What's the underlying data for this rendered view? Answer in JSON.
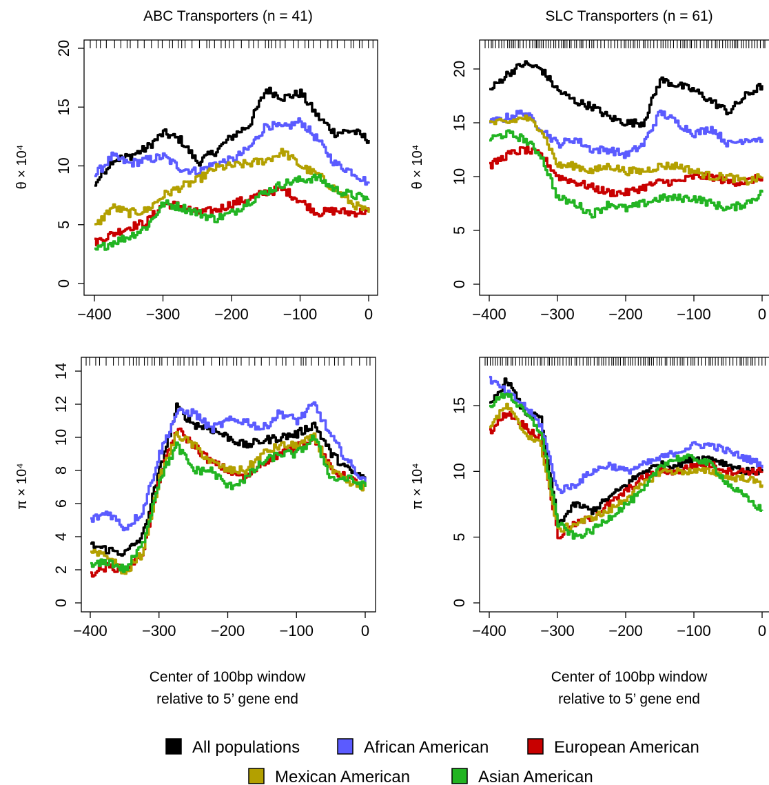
{
  "legend": {
    "entries": [
      {
        "label": "All populations",
        "color": "#000000"
      },
      {
        "label": "African American",
        "color": "#5b5bff"
      },
      {
        "label": "European American",
        "color": "#c80000"
      },
      {
        "label": "Mexican American",
        "color": "#b3a000"
      },
      {
        "label": "Asian American",
        "color": "#22b422"
      }
    ]
  },
  "chart_data": [
    {
      "type": "line",
      "panel": "ABC theta",
      "title": "ABC Transporters (n = 41)",
      "ylabel": "θ × 10⁴",
      "xlabel": "",
      "xlim": [
        -400,
        0
      ],
      "ylim": [
        0,
        20
      ],
      "xticks": [
        "-400",
        "-300",
        "-200",
        "-100",
        "0"
      ],
      "yticks": [
        "0",
        "5",
        "10",
        "15",
        "20"
      ],
      "x": [
        -400,
        -375,
        -350,
        -325,
        -300,
        -275,
        -250,
        -225,
        -200,
        -175,
        -150,
        -125,
        -100,
        -75,
        -50,
        -25,
        0
      ],
      "series": [
        {
          "name": "All populations",
          "color": "#000000",
          "values": [
            8.5,
            10.5,
            10.8,
            11.5,
            12.8,
            12.2,
            10.3,
            11.2,
            12.5,
            13.5,
            16.5,
            15.8,
            16.2,
            14.2,
            12.8,
            13.0,
            12.2
          ]
        },
        {
          "name": "African American",
          "color": "#5b5bff",
          "values": [
            9.2,
            10.8,
            10.2,
            10.5,
            10.8,
            9.8,
            9.5,
            10.2,
            10.5,
            11.5,
            13.5,
            13.2,
            13.8,
            12.2,
            10.2,
            9.5,
            8.5
          ]
        },
        {
          "name": "European American",
          "color": "#c80000",
          "values": [
            3.5,
            4.2,
            4.8,
            5.2,
            6.8,
            6.6,
            6.0,
            6.2,
            6.8,
            7.2,
            7.8,
            8.0,
            7.0,
            6.0,
            6.2,
            6.0,
            6.2
          ]
        },
        {
          "name": "Mexican American",
          "color": "#b3a000",
          "values": [
            4.8,
            6.5,
            6.0,
            6.2,
            7.5,
            8.2,
            8.8,
            9.8,
            10.0,
            10.2,
            10.5,
            11.2,
            10.0,
            9.2,
            8.0,
            6.8,
            6.0
          ]
        },
        {
          "name": "Asian American",
          "color": "#22b422",
          "values": [
            2.8,
            3.5,
            4.0,
            4.8,
            6.8,
            6.5,
            6.0,
            5.5,
            6.0,
            7.0,
            7.8,
            8.5,
            8.8,
            9.0,
            8.0,
            7.5,
            7.2
          ]
        }
      ]
    },
    {
      "type": "line",
      "panel": "SLC theta",
      "title": "SLC Transporters (n = 61)",
      "ylabel": "θ × 10⁴",
      "xlabel": "",
      "xlim": [
        -400,
        0
      ],
      "ylim": [
        0,
        22
      ],
      "xticks": [
        "-400",
        "-300",
        "-200",
        "-100",
        "0"
      ],
      "yticks": [
        "0",
        "5",
        "10",
        "15",
        "20"
      ],
      "x": [
        -400,
        -375,
        -350,
        -325,
        -300,
        -275,
        -250,
        -225,
        -200,
        -175,
        -150,
        -125,
        -100,
        -75,
        -50,
        -25,
        0
      ],
      "series": [
        {
          "name": "All populations",
          "color": "#000000",
          "values": [
            18.0,
            19.5,
            20.5,
            20.0,
            18.0,
            17.0,
            16.5,
            15.5,
            15.0,
            15.0,
            19.0,
            18.5,
            18.0,
            17.0,
            16.0,
            17.5,
            18.5
          ]
        },
        {
          "name": "African American",
          "color": "#5b5bff",
          "values": [
            15.0,
            15.5,
            16.0,
            14.5,
            13.0,
            13.5,
            12.5,
            12.5,
            12.0,
            13.0,
            16.0,
            15.0,
            14.0,
            14.5,
            13.0,
            13.5,
            13.5
          ]
        },
        {
          "name": "European American",
          "color": "#c80000",
          "values": [
            11.0,
            12.0,
            12.5,
            12.0,
            10.0,
            9.5,
            9.0,
            8.5,
            8.5,
            9.0,
            9.5,
            9.5,
            10.0,
            10.0,
            9.5,
            9.5,
            10.0
          ]
        },
        {
          "name": "Mexican American",
          "color": "#b3a000",
          "values": [
            15.0,
            15.0,
            15.5,
            14.5,
            11.0,
            11.0,
            10.5,
            11.0,
            10.5,
            10.5,
            11.0,
            11.0,
            10.5,
            10.0,
            10.0,
            9.5,
            10.0
          ]
        },
        {
          "name": "Asian American",
          "color": "#22b422",
          "values": [
            13.5,
            14.0,
            13.5,
            12.0,
            8.0,
            7.5,
            6.5,
            7.5,
            7.0,
            7.5,
            8.0,
            8.0,
            8.0,
            7.5,
            7.0,
            7.5,
            8.5
          ]
        }
      ]
    },
    {
      "type": "line",
      "panel": "ABC pi",
      "title": "",
      "ylabel": "π × 10⁴",
      "xlabel": "Center of 100bp window\nrelative to 5’ gene end",
      "xlim": [
        -400,
        0
      ],
      "ylim": [
        0,
        14
      ],
      "xticks": [
        "-400",
        "-300",
        "-200",
        "-100",
        "0"
      ],
      "yticks": [
        "0",
        "2",
        "4",
        "6",
        "8",
        "10",
        "12",
        "14"
      ],
      "x": [
        -400,
        -375,
        -350,
        -325,
        -300,
        -275,
        -250,
        -225,
        -200,
        -175,
        -150,
        -125,
        -100,
        -75,
        -50,
        -25,
        0
      ],
      "series": [
        {
          "name": "All populations",
          "color": "#000000",
          "values": [
            3.5,
            3.2,
            3.0,
            4.0,
            8.0,
            11.8,
            10.8,
            10.5,
            10.0,
            9.5,
            9.8,
            10.0,
            10.2,
            10.8,
            9.0,
            8.0,
            7.5
          ]
        },
        {
          "name": "African American",
          "color": "#5b5bff",
          "values": [
            5.0,
            5.5,
            4.5,
            5.5,
            9.0,
            11.5,
            11.5,
            10.5,
            11.0,
            11.0,
            10.5,
            11.5,
            11.0,
            12.0,
            10.0,
            8.5,
            7.2
          ]
        },
        {
          "name": "European American",
          "color": "#c80000",
          "values": [
            1.8,
            2.2,
            2.0,
            3.0,
            7.5,
            10.5,
            9.5,
            8.5,
            8.0,
            7.5,
            8.5,
            9.0,
            9.5,
            10.0,
            8.0,
            7.5,
            7.0
          ]
        },
        {
          "name": "Mexican American",
          "color": "#b3a000",
          "values": [
            3.0,
            2.8,
            1.8,
            3.0,
            7.5,
            10.2,
            9.5,
            8.5,
            8.0,
            8.0,
            9.0,
            9.5,
            9.5,
            10.0,
            8.0,
            7.2,
            7.0
          ]
        },
        {
          "name": "Asian American",
          "color": "#22b422",
          "values": [
            2.2,
            2.5,
            2.0,
            3.5,
            7.5,
            9.5,
            8.0,
            8.0,
            7.0,
            7.5,
            8.5,
            9.0,
            9.0,
            10.0,
            7.5,
            7.5,
            7.0
          ]
        }
      ]
    },
    {
      "type": "line",
      "panel": "SLC pi",
      "title": "",
      "ylabel": "π × 10⁴",
      "xlabel": "Center of 100bp window\nrelative to 5’ gene end",
      "xlim": [
        -400,
        0
      ],
      "ylim": [
        0,
        18
      ],
      "xticks": [
        "-400",
        "-300",
        "-200",
        "-100",
        "0"
      ],
      "yticks": [
        "0",
        "5",
        "10",
        "15"
      ],
      "x": [
        -400,
        -375,
        -350,
        -325,
        -300,
        -275,
        -250,
        -225,
        -200,
        -175,
        -150,
        -125,
        -100,
        -75,
        -50,
        -25,
        0
      ],
      "series": [
        {
          "name": "All populations",
          "color": "#000000",
          "values": [
            15.0,
            17.0,
            14.5,
            14.0,
            6.0,
            7.5,
            7.0,
            8.0,
            9.0,
            10.0,
            10.5,
            10.5,
            11.0,
            11.0,
            10.5,
            10.0,
            10.0
          ]
        },
        {
          "name": "African American",
          "color": "#5b5bff",
          "values": [
            17.0,
            16.0,
            15.0,
            13.5,
            8.5,
            9.0,
            10.0,
            10.5,
            10.0,
            10.5,
            11.0,
            11.5,
            12.0,
            12.0,
            11.5,
            11.0,
            10.5
          ]
        },
        {
          "name": "European American",
          "color": "#c80000",
          "values": [
            13.0,
            14.5,
            13.5,
            12.5,
            5.0,
            6.0,
            6.5,
            7.5,
            8.5,
            9.5,
            10.0,
            10.0,
            10.5,
            10.5,
            10.0,
            10.0,
            10.0
          ]
        },
        {
          "name": "Mexican American",
          "color": "#b3a000",
          "values": [
            13.5,
            15.0,
            13.0,
            12.0,
            5.5,
            6.0,
            6.5,
            7.0,
            8.0,
            9.0,
            10.0,
            10.0,
            10.0,
            10.0,
            9.5,
            9.5,
            9.0
          ]
        },
        {
          "name": "Asian American",
          "color": "#22b422",
          "values": [
            15.0,
            16.0,
            14.5,
            13.0,
            6.0,
            5.0,
            5.5,
            6.5,
            7.5,
            8.5,
            10.5,
            11.0,
            11.0,
            10.5,
            9.0,
            8.0,
            7.0
          ]
        }
      ]
    }
  ]
}
